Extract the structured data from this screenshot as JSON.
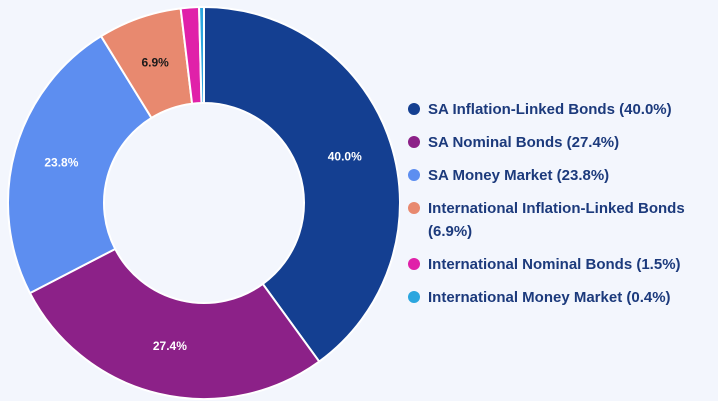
{
  "chart_data": {
    "type": "donut",
    "categories": [
      "SA Inflation-Linked Bonds (40.0%)",
      "SA Nominal Bonds (27.4%)",
      "SA Money Market (23.8%)",
      "International Inflation-Linked Bonds (6.9%)",
      "International Nominal Bonds (1.5%)",
      "International Money Market (0.4%)"
    ],
    "values": [
      40.0,
      27.4,
      23.8,
      6.9,
      1.5,
      0.4
    ],
    "value_labels": [
      "40.0%",
      "27.4%",
      "23.8%",
      "6.9%",
      null,
      null
    ],
    "colors": [
      "#143f91",
      "#8c2188",
      "#5d8ef0",
      "#e8896f",
      "#e021a9",
      "#2ba6df"
    ],
    "value_label_colors": [
      "#ffffff",
      "#ffffff",
      "#ffffff",
      "#1a1a1a",
      "#ffffff",
      "#ffffff"
    ]
  }
}
